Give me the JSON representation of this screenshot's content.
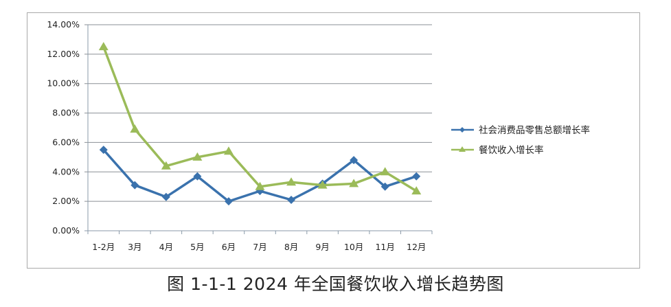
{
  "caption": "图 1-1-1   2024 年全国餐饮收入增长趋势图",
  "colors": {
    "series1": "#3a72ad",
    "series2": "#9bbb59",
    "grid": "#8a8f95",
    "frame": "#a9a9a9"
  },
  "chart_data": {
    "type": "line",
    "title": "2024 年全国餐饮收入增长趋势图",
    "xlabel": "",
    "ylabel": "",
    "ylim": [
      0,
      0.14
    ],
    "yticks": [
      "0.00%",
      "2.00%",
      "4.00%",
      "6.00%",
      "8.00%",
      "10.00%",
      "12.00%",
      "14.00%"
    ],
    "categories": [
      "1-2月",
      "3月",
      "4月",
      "5月",
      "6月",
      "7月",
      "8月",
      "9月",
      "10月",
      "11月",
      "12月"
    ],
    "series": [
      {
        "name": "社会消费品零售总额增长率",
        "marker": "diamond",
        "color": "#3a72ad",
        "values": [
          5.5,
          3.1,
          2.3,
          3.7,
          2.0,
          2.7,
          2.1,
          3.2,
          4.8,
          3.0,
          3.7
        ]
      },
      {
        "name": "餐饮收入增长率",
        "marker": "triangle",
        "color": "#9bbb59",
        "values": [
          12.5,
          6.9,
          4.4,
          5.0,
          5.4,
          3.0,
          3.3,
          3.1,
          3.2,
          4.0,
          2.7
        ]
      }
    ],
    "grid": true,
    "legend_position": "right"
  }
}
